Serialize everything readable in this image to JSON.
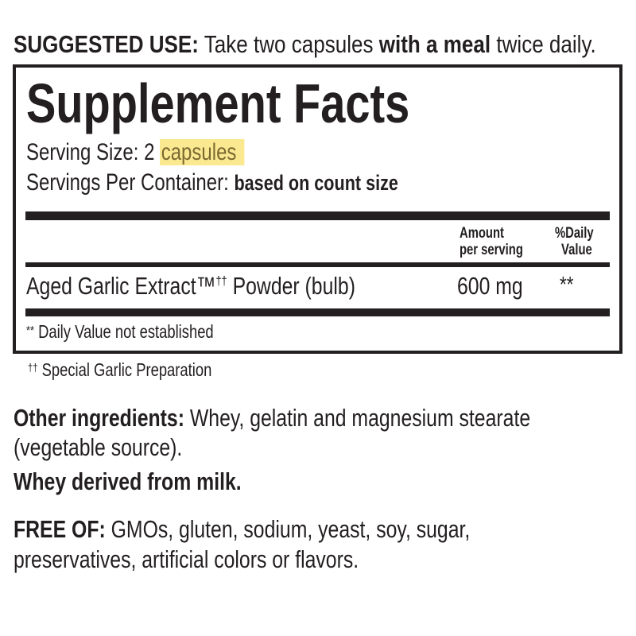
{
  "suggested_use": {
    "label": "SUGGESTED USE:",
    "text1": "Take two capsules",
    "bold": "with a meal",
    "text2": "twice daily."
  },
  "facts": {
    "title": "Supplement Facts",
    "serving_size_label": "Serving Size:",
    "serving_size_value": "2",
    "serving_size_unit": "capsules",
    "servings_per_container_label": "Servings Per Container:",
    "servings_per_container_value": "based on count size",
    "col_amount": [
      "Amount",
      "per serving"
    ],
    "col_dv": [
      "%Daily",
      "Value"
    ],
    "rows": [
      {
        "name": "Aged Garlic Extract™",
        "mark": "††",
        "rest": "Powder (bulb)",
        "amount": "600 mg",
        "dv": "**"
      }
    ],
    "footnote_mark": "**",
    "footnote": "Daily Value not established"
  },
  "special_note": {
    "mark": "††",
    "text": "Special Garlic Preparation"
  },
  "other_ingredients": {
    "label": "Other ingredients:",
    "text": "Whey, gelatin and magnesium stearate",
    "text2": "(vegetable source).",
    "allergen": "Whey derived from milk."
  },
  "free_of": {
    "label": "FREE OF:",
    "text": "GMOs, gluten, sodium, yeast, soy, sugar,",
    "text2": "preservatives, artificial colors or flavors."
  },
  "colors": {
    "ink": "#231f20",
    "highlight": "#fae16e"
  }
}
